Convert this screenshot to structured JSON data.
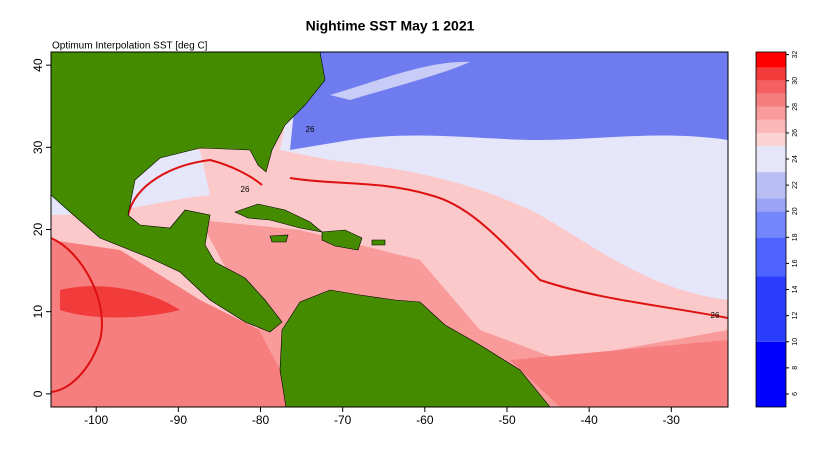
{
  "chart_data": {
    "type": "map",
    "title": "Nightime SST May 1 2021",
    "subtitle": "Optimum Interpolation SST [deg C]",
    "xlim": [
      -105.5,
      -23.1
    ],
    "xticks": [
      -100,
      -90,
      -80,
      -70,
      -60,
      -50,
      -40,
      -30
    ],
    "ylim": [
      -1.6,
      41.6
    ],
    "yticks": [
      0,
      10,
      20,
      30,
      40
    ],
    "contour_labels": [
      "26",
      "26",
      "26"
    ],
    "colorbar": {
      "clim": [
        5,
        32.2
      ],
      "ticks": [
        6,
        8,
        10,
        12,
        14,
        16,
        18,
        20,
        22,
        24,
        26,
        28,
        30,
        32
      ],
      "breaks": [
        5,
        10,
        15,
        18,
        20,
        21,
        23,
        25,
        26,
        27,
        28,
        29,
        30,
        31,
        32.2
      ],
      "colors": [
        "#0000ff",
        "#2b3dff",
        "#4f63ff",
        "#7486fb",
        "#9aa4f7",
        "#b9bff5",
        "#e6e6fa",
        "#fbd3d3",
        "#fbb8b8",
        "#f99b9b",
        "#f67e7e",
        "#f45f5f",
        "#f23c3c",
        "#ff0000"
      ]
    }
  }
}
